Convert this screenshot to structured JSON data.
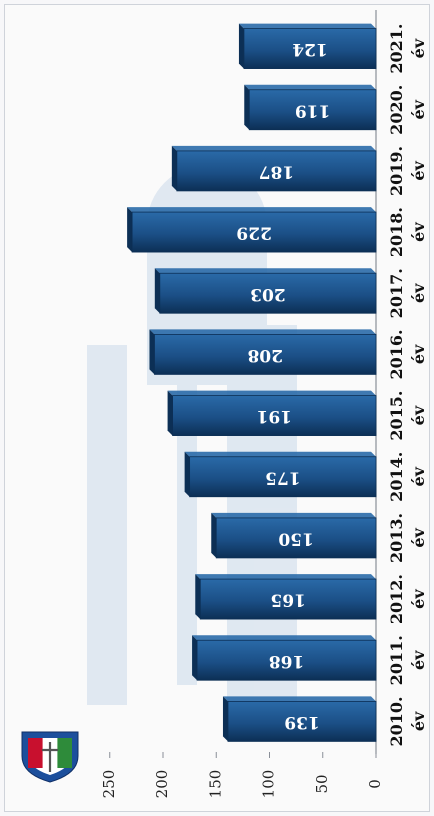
{
  "chart_data": {
    "type": "bar",
    "orientation": "rotated-horizontal",
    "categories": [
      "2010.\név",
      "2011.\név",
      "2012.\név",
      "2013.\név",
      "2014.\név",
      "2015.\név",
      "2016.\név",
      "2017.\név",
      "2018.\név",
      "2019.\név",
      "2020.\név",
      "2021.\név"
    ],
    "category_lines": [
      [
        "2010.",
        "év"
      ],
      [
        "2011.",
        "év"
      ],
      [
        "2012.",
        "év"
      ],
      [
        "2013.",
        "év"
      ],
      [
        "2014.",
        "év"
      ],
      [
        "2015.",
        "év"
      ],
      [
        "2016.",
        "év"
      ],
      [
        "2017.",
        "év"
      ],
      [
        "2018.",
        "év"
      ],
      [
        "2019.",
        "év"
      ],
      [
        "2020.",
        "év"
      ],
      [
        "2021.",
        "év"
      ]
    ],
    "values": [
      139,
      168,
      165,
      150,
      175,
      191,
      208,
      203,
      229,
      187,
      119,
      124
    ],
    "value_labels": [
      "139",
      "168",
      "165",
      "150",
      "175",
      "191",
      "208",
      "203",
      "229",
      "187",
      "119",
      "124"
    ],
    "ylim": [
      0,
      250
    ],
    "ticks": [
      0,
      50,
      100,
      150,
      200,
      250
    ],
    "tick_labels": [
      "0",
      "50",
      "100",
      "150",
      "200",
      "250"
    ],
    "title": "",
    "xlabel": "",
    "ylabel": "",
    "bar_color": "#1b4f86",
    "bar_highlight": "#2a6aa8",
    "bar_shadow": "#0c2f55",
    "label_color": "#ffffff",
    "grid": false,
    "legend": "none"
  },
  "logo": {
    "name": "shield-crest-icon",
    "colors": [
      "#c8102e",
      "#ffffff",
      "#2e8b3a",
      "#1c4f9c"
    ]
  }
}
